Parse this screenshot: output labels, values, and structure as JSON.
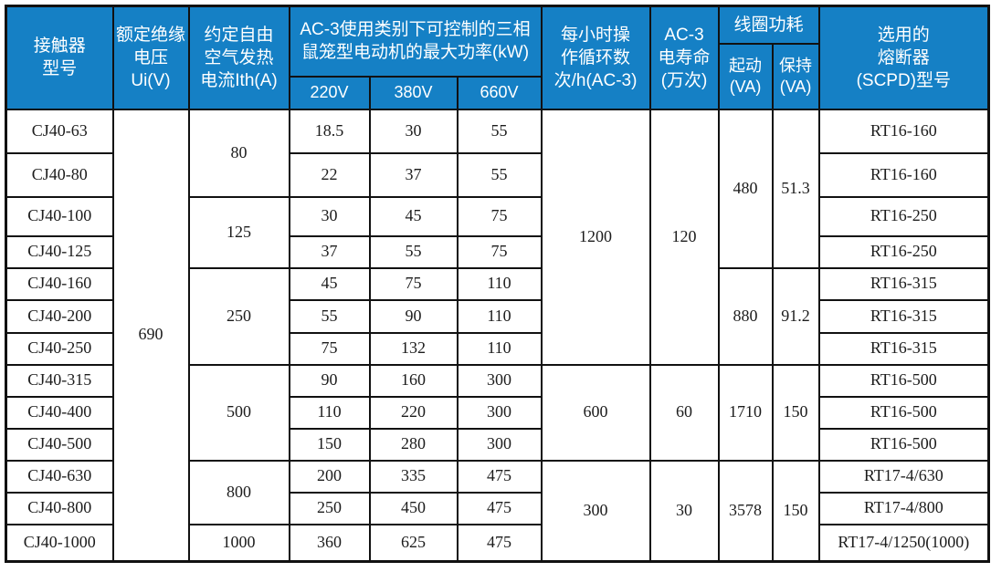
{
  "colors": {
    "header_bg": "#1580c5",
    "header_text": "#ffffff",
    "grid_border": "#111111",
    "body_text": "#1c1c1c",
    "body_bg": "#ffffff"
  },
  "table": {
    "header": {
      "contactor_model": "接触器\n型号",
      "rated_insulation_voltage": "额定绝缘\n电压Ui(V)",
      "thermal_current": "约定自由\n空气发热\n电流Ith(A)",
      "ac3_power_group": "AC-3使用类别下可控制的三相\n鼠笼型电动机的最大功率(kW)",
      "v220": "220V",
      "v380": "380V",
      "v660": "660V",
      "ops_per_hour": "每小时操\n作循环数\n次/h(AC-3)",
      "electrical_life": "AC-3\n电寿命\n(万次)",
      "coil_power_group": "线圈功耗",
      "coil_start": "起动\n(VA)",
      "coil_hold": "保持\n(VA)",
      "fuse": "选用的\n熔断器\n(SCPD)型号"
    },
    "rows": [
      {
        "model": "CJ40-63",
        "p220": "18.5",
        "p380": "30",
        "p660": "55",
        "fuse": "RT16-160"
      },
      {
        "model": "CJ40-80",
        "p220": "22",
        "p380": "37",
        "p660": "55",
        "fuse": "RT16-160"
      },
      {
        "model": "CJ40-100",
        "p220": "30",
        "p380": "45",
        "p660": "75",
        "fuse": "RT16-250"
      },
      {
        "model": "CJ40-125",
        "p220": "37",
        "p380": "55",
        "p660": "75",
        "fuse": "RT16-250"
      },
      {
        "model": "CJ40-160",
        "p220": "45",
        "p380": "75",
        "p660": "110",
        "fuse": "RT16-315"
      },
      {
        "model": "CJ40-200",
        "p220": "55",
        "p380": "90",
        "p660": "110",
        "fuse": "RT16-315"
      },
      {
        "model": "CJ40-250",
        "p220": "75",
        "p380": "132",
        "p660": "110",
        "fuse": "RT16-315"
      },
      {
        "model": "CJ40-315",
        "p220": "90",
        "p380": "160",
        "p660": "300",
        "fuse": "RT16-500"
      },
      {
        "model": "CJ40-400",
        "p220": "110",
        "p380": "220",
        "p660": "300",
        "fuse": "RT16-500"
      },
      {
        "model": "CJ40-500",
        "p220": "150",
        "p380": "280",
        "p660": "300",
        "fuse": "RT16-500"
      },
      {
        "model": "CJ40-630",
        "p220": "200",
        "p380": "335",
        "p660": "475",
        "fuse": "RT17-4/630"
      },
      {
        "model": "CJ40-800",
        "p220": "250",
        "p380": "450",
        "p660": "475",
        "fuse": "RT17-4/800"
      },
      {
        "model": "CJ40-1000",
        "p220": "360",
        "p380": "625",
        "p660": "475",
        "fuse": "RT17-4/1250(1000)"
      }
    ],
    "merged": {
      "ui": [
        {
          "value": "690",
          "span": 13
        }
      ],
      "ith": [
        {
          "value": "80",
          "span": 2
        },
        {
          "value": "125",
          "span": 2
        },
        {
          "value": "250",
          "span": 3
        },
        {
          "value": "500",
          "span": 3
        },
        {
          "value": "800",
          "span": 2
        },
        {
          "value": "1000",
          "span": 1
        }
      ],
      "ops": [
        {
          "value": "1200",
          "span": 7
        },
        {
          "value": "600",
          "span": 3
        },
        {
          "value": "300",
          "span": 3
        }
      ],
      "life": [
        {
          "value": "120",
          "span": 7
        },
        {
          "value": "60",
          "span": 3
        },
        {
          "value": "30",
          "span": 3
        }
      ],
      "start": [
        {
          "value": "480",
          "span": 4
        },
        {
          "value": "880",
          "span": 3
        },
        {
          "value": "1710",
          "span": 3
        },
        {
          "value": "3578",
          "span": 3
        }
      ],
      "hold": [
        {
          "value": "51.3",
          "span": 4
        },
        {
          "value": "91.2",
          "span": 3
        },
        {
          "value": "150",
          "span": 3
        },
        {
          "value": "150",
          "span": 3
        }
      ]
    }
  }
}
